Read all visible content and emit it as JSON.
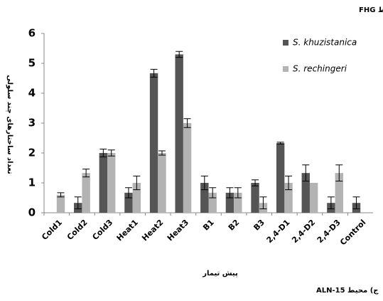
{
  "chart_data": {
    "type": "bar",
    "header": "ب) محیط FHG",
    "footer": "ج) محیط ALN-15",
    "x_label": "پیش تیمار",
    "y_label": "تعداد ساختارهای چند سلولی",
    "categories": [
      "Cold1",
      "Cold2",
      "Cold3",
      "Heat1",
      "Heat2",
      "Heat3",
      "B1",
      "B2",
      "B3",
      "2,4-D1",
      "2,4-D2",
      "2,4-D3",
      "Control"
    ],
    "series": [
      {
        "name": "S. khuzistanica",
        "color": "#555555",
        "values": [
          0,
          0.33,
          2.0,
          0.67,
          4.67,
          5.3,
          1.0,
          0.67,
          1.0,
          2.33,
          1.33,
          0.33,
          0.33
        ],
        "errors": [
          0,
          0.2,
          0.13,
          0.17,
          0.13,
          0.1,
          0.23,
          0.17,
          0.1,
          0.03,
          0.27,
          0.2,
          0.2
        ]
      },
      {
        "name": "S. rechingeri",
        "color": "#b3b3b3",
        "values": [
          0.6,
          1.33,
          2.0,
          1.0,
          2.0,
          3.0,
          0.67,
          0.67,
          0.33,
          1.0,
          1.0,
          1.33,
          0
        ],
        "errors": [
          0.07,
          0.13,
          0.1,
          0.23,
          0.07,
          0.15,
          0.17,
          0.17,
          0.2,
          0.23,
          0,
          0.27,
          0
        ]
      }
    ],
    "ylim": [
      0,
      6
    ],
    "yticks": [
      0,
      1,
      2,
      3,
      4,
      5,
      6
    ],
    "legend": "top-right"
  }
}
